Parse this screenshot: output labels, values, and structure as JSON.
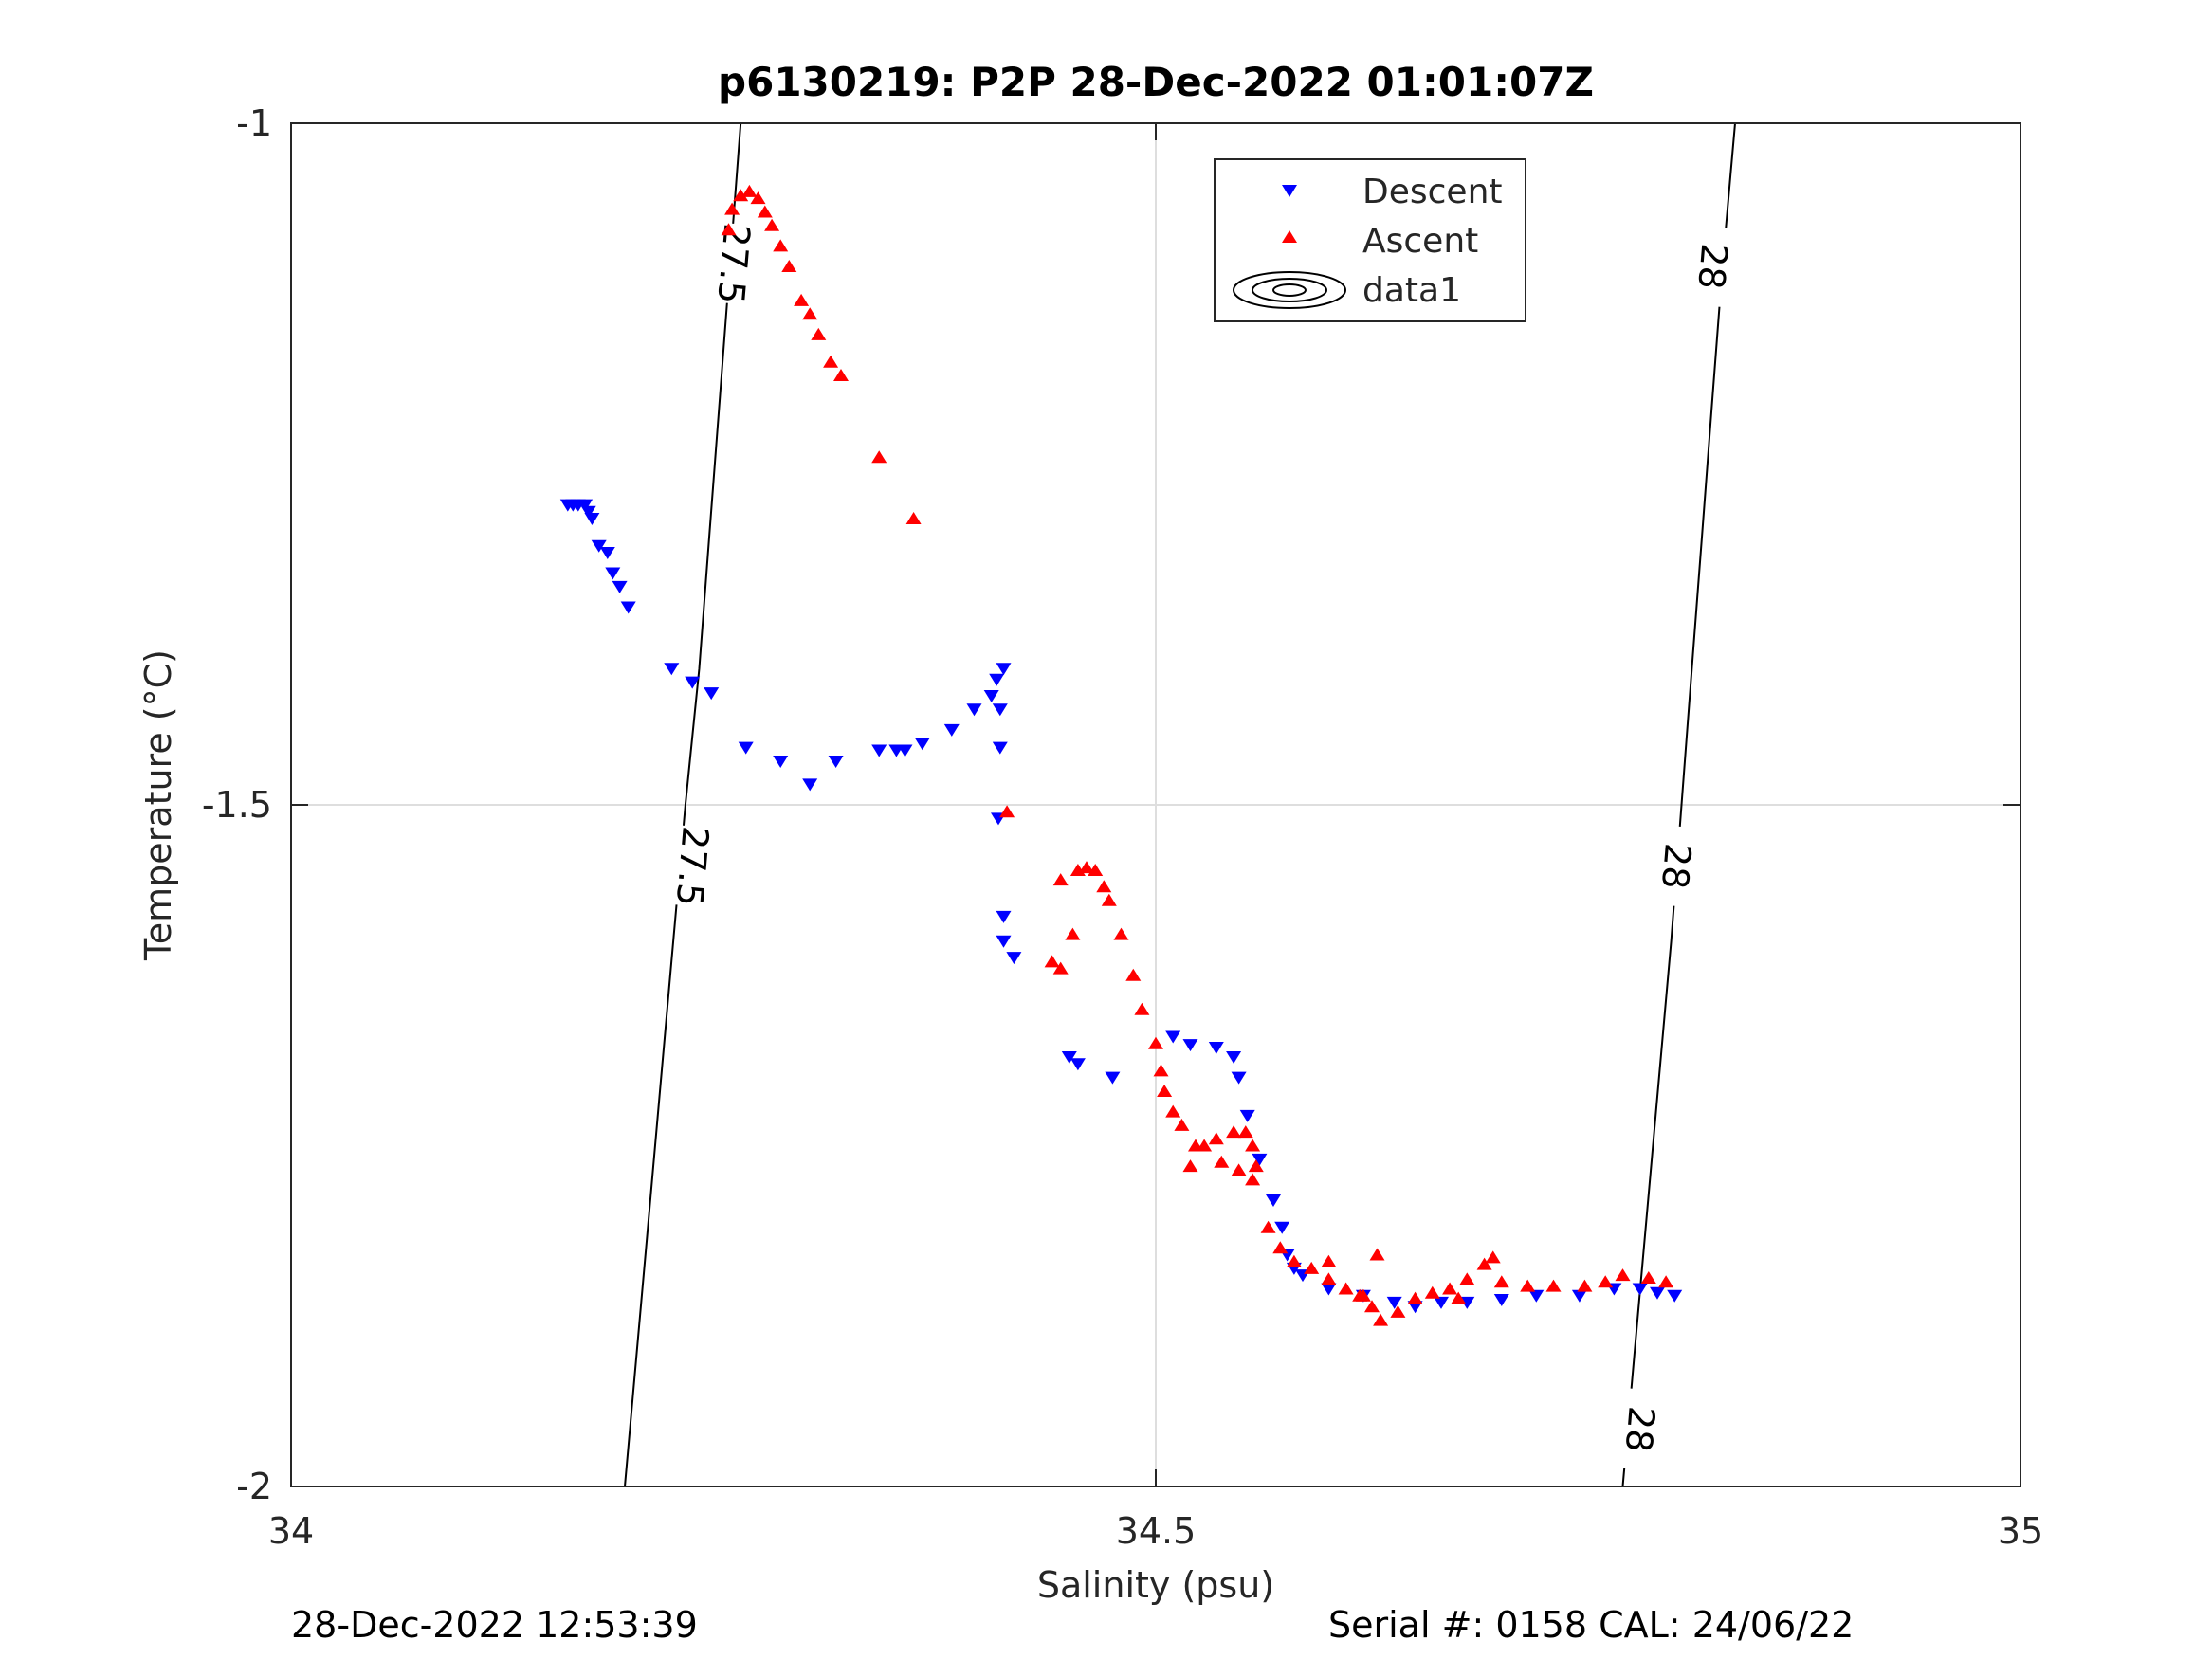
{
  "chart_data": {
    "type": "scatter",
    "title": "p6130219: P2P 28-Dec-2022 01:01:07Z",
    "xlabel": "Salinity (psu)",
    "ylabel": "Temperature (°C)",
    "xlim": [
      34,
      35
    ],
    "ylim": [
      -2,
      -1
    ],
    "xticks": [
      34,
      34.5,
      35
    ],
    "xtick_labels": [
      "34",
      "34.5",
      "35"
    ],
    "yticks": [
      -2,
      -1.5,
      -1
    ],
    "ytick_labels": [
      "-2",
      "-1.5",
      "-1"
    ],
    "grid": true,
    "legend_position": "top-right",
    "colors": {
      "descent": "#0000ff",
      "ascent": "#ff0000",
      "contour": "#000000",
      "grid": "#dedede",
      "axis": "#262626"
    },
    "legend": [
      "Descent",
      "Ascent",
      "data1"
    ],
    "contours": [
      {
        "level": "27.5",
        "points": [
          [
            34.193,
            -2.0
          ],
          [
            34.2,
            -1.9
          ],
          [
            34.207,
            -1.8
          ],
          [
            34.214,
            -1.7
          ],
          [
            34.221,
            -1.6
          ],
          [
            34.228,
            -1.5
          ],
          [
            34.236,
            -1.4
          ],
          [
            34.242,
            -1.3
          ],
          [
            34.248,
            -1.2
          ],
          [
            34.254,
            -1.1
          ],
          [
            34.26,
            -1.0
          ]
        ],
        "labels": [
          [
            34.256,
            -1.103
          ],
          [
            34.232,
            -1.545
          ]
        ]
      },
      {
        "level": "28",
        "points": [
          [
            34.77,
            -2.0
          ],
          [
            34.777,
            -1.9
          ],
          [
            34.784,
            -1.8
          ],
          [
            34.791,
            -1.7
          ],
          [
            34.798,
            -1.6
          ],
          [
            34.804,
            -1.5
          ],
          [
            34.81,
            -1.4
          ],
          [
            34.816,
            -1.3
          ],
          [
            34.822,
            -1.2
          ],
          [
            34.828,
            -1.1
          ],
          [
            34.835,
            -1.0
          ]
        ],
        "labels": [
          [
            34.78,
            -1.958
          ],
          [
            34.801,
            -1.545
          ],
          [
            34.822,
            -1.105
          ]
        ]
      }
    ],
    "series": [
      {
        "name": "Descent",
        "marker": "triangle-down",
        "points": [
          [
            34.16,
            -1.28
          ],
          [
            34.163,
            -1.28
          ],
          [
            34.166,
            -1.28
          ],
          [
            34.17,
            -1.28
          ],
          [
            34.172,
            -1.285
          ],
          [
            34.174,
            -1.29
          ],
          [
            34.178,
            -1.31
          ],
          [
            34.183,
            -1.315
          ],
          [
            34.186,
            -1.33
          ],
          [
            34.19,
            -1.34
          ],
          [
            34.195,
            -1.355
          ],
          [
            34.22,
            -1.4
          ],
          [
            34.232,
            -1.41
          ],
          [
            34.243,
            -1.418
          ],
          [
            34.263,
            -1.458
          ],
          [
            34.283,
            -1.468
          ],
          [
            34.3,
            -1.485
          ],
          [
            34.315,
            -1.468
          ],
          [
            34.34,
            -1.46
          ],
          [
            34.35,
            -1.46
          ],
          [
            34.355,
            -1.46
          ],
          [
            34.365,
            -1.455
          ],
          [
            34.382,
            -1.445
          ],
          [
            34.395,
            -1.43
          ],
          [
            34.405,
            -1.42
          ],
          [
            34.408,
            -1.408
          ],
          [
            34.412,
            -1.4
          ],
          [
            34.41,
            -1.43
          ],
          [
            34.41,
            -1.458
          ],
          [
            34.409,
            -1.51
          ],
          [
            34.418,
            -1.612
          ],
          [
            34.412,
            -1.582
          ],
          [
            34.412,
            -1.6
          ],
          [
            34.45,
            -1.685
          ],
          [
            34.455,
            -1.69
          ],
          [
            34.475,
            -1.7
          ],
          [
            34.51,
            -1.67
          ],
          [
            34.52,
            -1.676
          ],
          [
            34.535,
            -1.678
          ],
          [
            34.545,
            -1.685
          ],
          [
            34.548,
            -1.7
          ],
          [
            34.553,
            -1.728
          ],
          [
            34.56,
            -1.76
          ],
          [
            34.568,
            -1.79
          ],
          [
            34.573,
            -1.81
          ],
          [
            34.576,
            -1.83
          ],
          [
            34.58,
            -1.84
          ],
          [
            34.585,
            -1.845
          ],
          [
            34.6,
            -1.855
          ],
          [
            34.62,
            -1.86
          ],
          [
            34.638,
            -1.865
          ],
          [
            34.65,
            -1.868
          ],
          [
            34.665,
            -1.865
          ],
          [
            34.68,
            -1.865
          ],
          [
            34.7,
            -1.863
          ],
          [
            34.72,
            -1.86
          ],
          [
            34.745,
            -1.86
          ],
          [
            34.765,
            -1.855
          ],
          [
            34.78,
            -1.855
          ],
          [
            34.79,
            -1.858
          ],
          [
            34.8,
            -1.86
          ]
        ]
      },
      {
        "name": "Ascent",
        "marker": "triangle-up",
        "points": [
          [
            34.253,
            -1.078
          ],
          [
            34.255,
            -1.063
          ],
          [
            34.26,
            -1.053
          ],
          [
            34.265,
            -1.05
          ],
          [
            34.27,
            -1.055
          ],
          [
            34.274,
            -1.065
          ],
          [
            34.278,
            -1.075
          ],
          [
            34.283,
            -1.09
          ],
          [
            34.288,
            -1.105
          ],
          [
            34.295,
            -1.13
          ],
          [
            34.3,
            -1.14
          ],
          [
            34.305,
            -1.155
          ],
          [
            34.312,
            -1.175
          ],
          [
            34.318,
            -1.185
          ],
          [
            34.34,
            -1.245
          ],
          [
            34.36,
            -1.29
          ],
          [
            34.414,
            -1.505
          ],
          [
            34.445,
            -1.555
          ],
          [
            34.455,
            -1.548
          ],
          [
            34.46,
            -1.546
          ],
          [
            34.465,
            -1.548
          ],
          [
            34.47,
            -1.56
          ],
          [
            34.473,
            -1.57
          ],
          [
            34.48,
            -1.595
          ],
          [
            34.487,
            -1.625
          ],
          [
            34.492,
            -1.65
          ],
          [
            34.44,
            -1.615
          ],
          [
            34.445,
            -1.62
          ],
          [
            34.452,
            -1.595
          ],
          [
            34.5,
            -1.675
          ],
          [
            34.503,
            -1.695
          ],
          [
            34.505,
            -1.71
          ],
          [
            34.51,
            -1.725
          ],
          [
            34.515,
            -1.735
          ],
          [
            34.523,
            -1.75
          ],
          [
            34.535,
            -1.745
          ],
          [
            34.545,
            -1.74
          ],
          [
            34.552,
            -1.74
          ],
          [
            34.556,
            -1.75
          ],
          [
            34.558,
            -1.765
          ],
          [
            34.556,
            -1.775
          ],
          [
            34.548,
            -1.768
          ],
          [
            34.538,
            -1.762
          ],
          [
            34.528,
            -1.75
          ],
          [
            34.52,
            -1.765
          ],
          [
            34.565,
            -1.81
          ],
          [
            34.572,
            -1.825
          ],
          [
            34.58,
            -1.835
          ],
          [
            34.59,
            -1.84
          ],
          [
            34.6,
            -1.848
          ],
          [
            34.61,
            -1.855
          ],
          [
            34.618,
            -1.86
          ],
          [
            34.625,
            -1.868
          ],
          [
            34.63,
            -1.878
          ],
          [
            34.64,
            -1.872
          ],
          [
            34.65,
            -1.862
          ],
          [
            34.66,
            -1.858
          ],
          [
            34.67,
            -1.855
          ],
          [
            34.675,
            -1.862
          ],
          [
            34.68,
            -1.848
          ],
          [
            34.69,
            -1.837
          ],
          [
            34.695,
            -1.832
          ],
          [
            34.7,
            -1.85
          ],
          [
            34.715,
            -1.853
          ],
          [
            34.73,
            -1.853
          ],
          [
            34.748,
            -1.853
          ],
          [
            34.76,
            -1.85
          ],
          [
            34.77,
            -1.845
          ],
          [
            34.785,
            -1.847
          ],
          [
            34.795,
            -1.85
          ],
          [
            34.6,
            -1.835
          ],
          [
            34.62,
            -1.86
          ],
          [
            34.628,
            -1.83
          ]
        ]
      }
    ],
    "footer": {
      "timestamp": "28-Dec-2022 12:53:39",
      "serial_cal": "Serial #: 0158  CAL: 24/06/22"
    }
  }
}
